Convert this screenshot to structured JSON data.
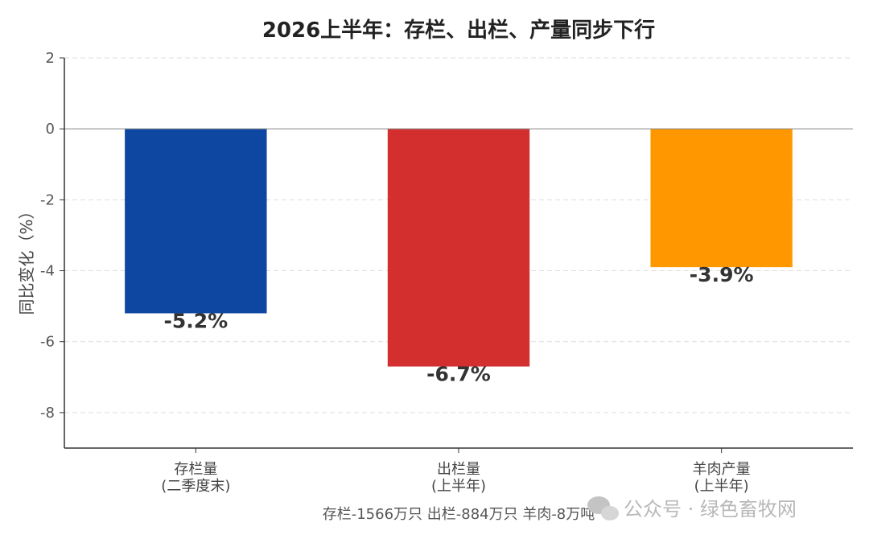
{
  "chart_data": {
    "type": "bar",
    "title": "2026上半年：存栏、出栏、产量同步下行",
    "ylabel": "同比变化（%）",
    "xlabel": "",
    "ylim": [
      -9,
      2
    ],
    "yticks": [
      2,
      0,
      -2,
      -4,
      -6,
      -8
    ],
    "grid": true,
    "categories": [
      [
        "存栏量",
        "(二季度末)"
      ],
      [
        "出栏量",
        "(上半年)"
      ],
      [
        "羊肉产量",
        "(上半年)"
      ]
    ],
    "values": [
      -5.2,
      -6.7,
      -3.9
    ],
    "data_labels": [
      "-5.2%",
      "-6.7%",
      "-3.9%"
    ],
    "colors": [
      "#0d47a1",
      "#d32f2f",
      "#ff9800"
    ]
  },
  "footnote": "存栏-1566万只  出栏-884万只  羊肉-8万吨",
  "watermark": {
    "text": "公众号 · 绿色畜牧网",
    "icon": "wechat-icon"
  }
}
